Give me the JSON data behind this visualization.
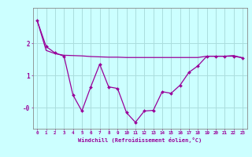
{
  "x": [
    0,
    1,
    2,
    3,
    4,
    5,
    6,
    7,
    8,
    9,
    10,
    11,
    12,
    13,
    14,
    15,
    16,
    17,
    18,
    19,
    20,
    21,
    22,
    23
  ],
  "windchill": [
    2.7,
    1.9,
    1.7,
    1.6,
    0.4,
    -0.1,
    0.65,
    1.35,
    0.65,
    0.6,
    -0.15,
    -0.45,
    -0.1,
    -0.08,
    0.5,
    0.45,
    0.7,
    1.1,
    1.3,
    1.6,
    1.6,
    1.6,
    1.6,
    1.55
  ],
  "temp": [
    2.7,
    1.78,
    1.68,
    1.63,
    1.62,
    1.61,
    1.59,
    1.58,
    1.57,
    1.57,
    1.56,
    1.56,
    1.56,
    1.56,
    1.56,
    1.56,
    1.56,
    1.56,
    1.56,
    1.6,
    1.6,
    1.6,
    1.62,
    1.55
  ],
  "line_color": "#990099",
  "bg_color": "#ccffff",
  "grid_color": "#aadddd",
  "xlabel": "Windchill (Refroidissement éolien,°C)",
  "xlim": [
    -0.5,
    23.5
  ],
  "ylim": [
    -0.65,
    3.1
  ],
  "xticks": [
    0,
    1,
    2,
    3,
    4,
    5,
    6,
    7,
    8,
    9,
    10,
    11,
    12,
    13,
    14,
    15,
    16,
    17,
    18,
    19,
    20,
    21,
    22,
    23
  ],
  "yticks": [
    0,
    1,
    2
  ],
  "ytick_labels": [
    "-0",
    "1",
    "2"
  ]
}
